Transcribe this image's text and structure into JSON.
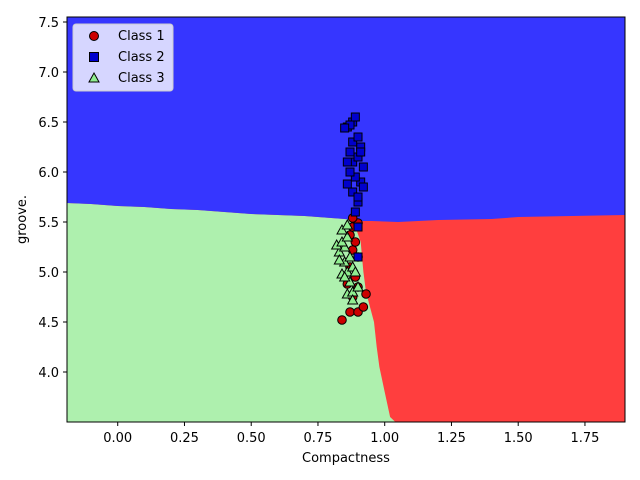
{
  "chart_data": {
    "type": "scatter",
    "title": "",
    "xlabel": "Compactness",
    "ylabel": "groove.",
    "xlim": [
      -0.19,
      1.9
    ],
    "ylim": [
      3.5,
      7.55
    ],
    "x_ticks": [
      "0.00",
      "0.25",
      "0.50",
      "0.75",
      "1.00",
      "1.25",
      "1.50",
      "1.75"
    ],
    "y_ticks": [
      "4.0",
      "4.5",
      "5.0",
      "5.5",
      "6.0",
      "6.5",
      "7.0",
      "7.5"
    ],
    "grid": false,
    "legend_position": "top-left",
    "decision_regions": [
      {
        "class": "Class 2",
        "color": "#3636ff",
        "boundary_below": [
          [
            -0.19,
            5.69
          ],
          [
            -0.1,
            5.68
          ],
          [
            0.0,
            5.66
          ],
          [
            0.1,
            5.65
          ],
          [
            0.2,
            5.63
          ],
          [
            0.3,
            5.62
          ],
          [
            0.4,
            5.6
          ],
          [
            0.5,
            5.58
          ],
          [
            0.6,
            5.57
          ],
          [
            0.7,
            5.56
          ],
          [
            0.8,
            5.54
          ],
          [
            0.85,
            5.53
          ],
          [
            0.9,
            5.51
          ],
          [
            0.95,
            5.51
          ],
          [
            1.05,
            5.5
          ],
          [
            1.2,
            5.52
          ],
          [
            1.4,
            5.53
          ],
          [
            1.5,
            5.55
          ],
          [
            1.7,
            5.56
          ],
          [
            1.9,
            5.57
          ]
        ]
      },
      {
        "class": "Class 3",
        "color": "#aef0ae",
        "boundary_right": [
          [
            0.88,
            5.53
          ],
          [
            0.91,
            5.3
          ],
          [
            0.92,
            5.0
          ],
          [
            0.93,
            4.8
          ],
          [
            0.96,
            4.5
          ],
          [
            0.97,
            4.25
          ],
          [
            0.98,
            4.05
          ],
          [
            1.0,
            3.8
          ],
          [
            1.02,
            3.55
          ],
          [
            1.04,
            3.5
          ]
        ]
      },
      {
        "class": "Class 1",
        "color": "#ff3e3e"
      }
    ],
    "series": [
      {
        "name": "Class 1",
        "marker": "circle",
        "color": "#cc0000",
        "points": [
          [
            0.84,
            4.52
          ],
          [
            0.87,
            4.6
          ],
          [
            0.9,
            4.6
          ],
          [
            0.92,
            4.65
          ],
          [
            0.93,
            4.78
          ],
          [
            0.88,
            4.75
          ],
          [
            0.9,
            4.85
          ],
          [
            0.86,
            4.88
          ],
          [
            0.89,
            4.95
          ],
          [
            0.87,
            5.05
          ],
          [
            0.9,
            5.15
          ],
          [
            0.88,
            5.22
          ],
          [
            0.89,
            5.3
          ],
          [
            0.87,
            5.37
          ],
          [
            0.88,
            5.45
          ],
          [
            0.9,
            5.49
          ],
          [
            0.88,
            5.54
          ]
        ]
      },
      {
        "name": "Class 2",
        "marker": "square",
        "color": "#0000cc",
        "points": [
          [
            0.9,
            5.15
          ],
          [
            0.9,
            5.45
          ],
          [
            0.89,
            5.6
          ],
          [
            0.9,
            5.7
          ],
          [
            0.88,
            5.8
          ],
          [
            0.86,
            5.88
          ],
          [
            0.91,
            5.9
          ],
          [
            0.89,
            5.95
          ],
          [
            0.87,
            6.0
          ],
          [
            0.92,
            6.05
          ],
          [
            0.88,
            6.1
          ],
          [
            0.9,
            6.15
          ],
          [
            0.87,
            6.2
          ],
          [
            0.91,
            6.25
          ],
          [
            0.88,
            6.3
          ],
          [
            0.9,
            6.35
          ],
          [
            0.86,
            6.45
          ],
          [
            0.88,
            6.5
          ],
          [
            0.87,
            6.47
          ],
          [
            0.89,
            6.55
          ],
          [
            0.85,
            6.44
          ],
          [
            0.91,
            6.2
          ],
          [
            0.86,
            6.1
          ],
          [
            0.92,
            5.85
          ],
          [
            0.9,
            5.75
          ]
        ]
      },
      {
        "name": "Class 3",
        "marker": "triangle",
        "color": "#90ee90",
        "points": [
          [
            0.86,
            4.78
          ],
          [
            0.88,
            4.8
          ],
          [
            0.9,
            4.85
          ],
          [
            0.84,
            4.98
          ],
          [
            0.86,
            5.0
          ],
          [
            0.88,
            5.05
          ],
          [
            0.85,
            5.1
          ],
          [
            0.87,
            5.15
          ],
          [
            0.83,
            5.2
          ],
          [
            0.85,
            5.25
          ],
          [
            0.82,
            5.27
          ],
          [
            0.84,
            5.3
          ],
          [
            0.86,
            5.35
          ],
          [
            0.84,
            5.42
          ],
          [
            0.86,
            5.47
          ],
          [
            0.88,
            4.72
          ],
          [
            0.87,
            4.9
          ],
          [
            0.83,
            5.12
          ],
          [
            0.89,
            5.0
          ],
          [
            0.85,
            4.95
          ]
        ]
      }
    ]
  }
}
